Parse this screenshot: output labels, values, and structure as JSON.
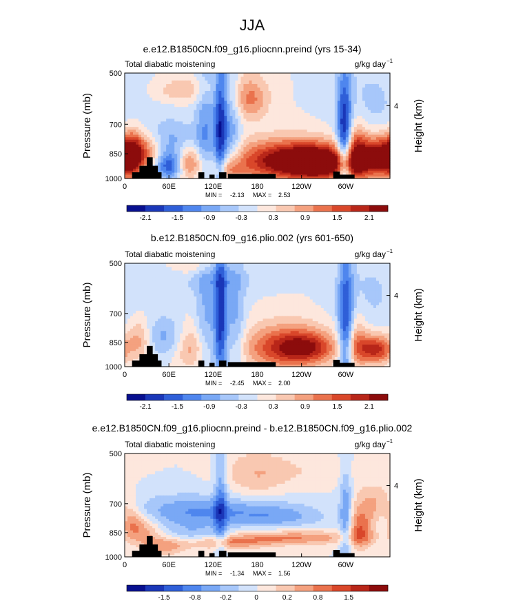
{
  "page_title": "JJA",
  "chart_data": [
    {
      "type": "heatmap",
      "title": "e.e12.B1850CN.f09_g16.pliocnn.preind (yrs 15-34)",
      "variable": "Total diabatic moistening",
      "units_label": "g/kg day",
      "units_exp": "−1",
      "ylabel": "Pressure (mb)",
      "ylabel_right": "Height (km)",
      "right_ticks": [
        "4"
      ],
      "x_ticks": [
        "0",
        "60E",
        "120E",
        "180",
        "120W",
        "60W"
      ],
      "y_ticks": [
        "500",
        "700",
        "850",
        "1000"
      ],
      "ylim": [
        1000,
        500
      ],
      "stats": {
        "min_label": "MIN =",
        "min": "-2.13",
        "max_label": "MAX =",
        "max": "2.53"
      },
      "colorbar_labels": [
        "-2.1",
        "-1.5",
        "-0.9",
        "-0.3",
        "0.3",
        "0.9",
        "1.5",
        "2.1"
      ],
      "colorbar_colors": [
        "#08108f",
        "#1a37b8",
        "#2f5fd8",
        "#4f86ee",
        "#79a8f5",
        "#a7c7fa",
        "#d2e2fb",
        "#fde7dd",
        "#f9c8b1",
        "#f4a17f",
        "#ea724d",
        "#d9472a",
        "#b82619",
        "#8c0c0c"
      ],
      "blobs": [
        {
          "lon": 30,
          "p": 830,
          "rx": 22,
          "ry": 70,
          "v": 1.5
        },
        {
          "lon": 10,
          "p": 870,
          "rx": 10,
          "ry": 90,
          "v": 1.4
        },
        {
          "lon": 55,
          "p": 800,
          "rx": 28,
          "ry": 80,
          "v": -1.1
        },
        {
          "lon": 62,
          "p": 920,
          "rx": 14,
          "ry": 60,
          "v": -1.6
        },
        {
          "lon": 85,
          "p": 900,
          "rx": 15,
          "ry": 70,
          "v": 1.3
        },
        {
          "lon": 110,
          "p": 780,
          "rx": 10,
          "ry": 220,
          "v": -0.9
        },
        {
          "lon": 130,
          "p": 760,
          "rx": 6,
          "ry": 250,
          "v": -1.6
        },
        {
          "lon": 145,
          "p": 750,
          "rx": 9,
          "ry": 200,
          "v": -0.8
        },
        {
          "lon": 140,
          "p": 950,
          "rx": 14,
          "ry": 50,
          "v": 1.0
        },
        {
          "lon": 170,
          "p": 590,
          "rx": 18,
          "ry": 60,
          "v": 1.0
        },
        {
          "lon": 80,
          "p": 560,
          "rx": 25,
          "ry": 30,
          "v": 0.6
        },
        {
          "lon": 230,
          "p": 890,
          "rx": 55,
          "ry": 80,
          "v": 2.3
        },
        {
          "lon": 265,
          "p": 910,
          "rx": 30,
          "ry": 60,
          "v": 1.6
        },
        {
          "lon": 298,
          "p": 790,
          "rx": 7,
          "ry": 220,
          "v": -1.8
        },
        {
          "lon": 315,
          "p": 850,
          "rx": 10,
          "ry": 120,
          "v": 1.2
        },
        {
          "lon": 345,
          "p": 870,
          "rx": 20,
          "ry": 80,
          "v": 2.0
        },
        {
          "lon": 330,
          "p": 620,
          "rx": 35,
          "ry": 120,
          "v": -0.4
        }
      ]
    },
    {
      "type": "heatmap",
      "title": "b.e12.B1850CN.f09_g16.plio.002 (yrs 601-650)",
      "variable": "Total diabatic moistening",
      "units_label": "g/kg day",
      "units_exp": "−1",
      "ylabel": "Pressure (mb)",
      "ylabel_right": "Height (km)",
      "right_ticks": [
        "4"
      ],
      "x_ticks": [
        "0",
        "60E",
        "120E",
        "180",
        "120W",
        "60W"
      ],
      "y_ticks": [
        "500",
        "700",
        "850",
        "1000"
      ],
      "ylim": [
        1000,
        500
      ],
      "stats": {
        "min_label": "MIN =",
        "min": "-2.45",
        "max_label": "MAX =",
        "max": "2.00"
      },
      "colorbar_labels": [
        "-2.1",
        "-1.5",
        "-0.9",
        "-0.3",
        "0.3",
        "0.9",
        "1.5",
        "2.1"
      ],
      "colorbar_colors": [
        "#08108f",
        "#1a37b8",
        "#2f5fd8",
        "#4f86ee",
        "#79a8f5",
        "#a7c7fa",
        "#d2e2fb",
        "#fde7dd",
        "#f9c8b1",
        "#f4a17f",
        "#ea724d",
        "#d9472a",
        "#b82619",
        "#8c0c0c"
      ],
      "blobs": [
        {
          "lon": 20,
          "p": 830,
          "rx": 12,
          "ry": 80,
          "v": 0.9
        },
        {
          "lon": 55,
          "p": 820,
          "rx": 26,
          "ry": 80,
          "v": -0.7
        },
        {
          "lon": 90,
          "p": 870,
          "rx": 16,
          "ry": 90,
          "v": 0.9
        },
        {
          "lon": 110,
          "p": 760,
          "rx": 10,
          "ry": 230,
          "v": -0.7
        },
        {
          "lon": 130,
          "p": 740,
          "rx": 6,
          "ry": 250,
          "v": -1.6
        },
        {
          "lon": 120,
          "p": 560,
          "rx": 45,
          "ry": 40,
          "v": -0.4
        },
        {
          "lon": 150,
          "p": 760,
          "rx": 10,
          "ry": 200,
          "v": -0.7
        },
        {
          "lon": 95,
          "p": 500,
          "rx": 20,
          "ry": 30,
          "v": 0.5
        },
        {
          "lon": 220,
          "p": 880,
          "rx": 40,
          "ry": 90,
          "v": 1.6
        },
        {
          "lon": 250,
          "p": 880,
          "rx": 25,
          "ry": 60,
          "v": 0.9
        },
        {
          "lon": 300,
          "p": 770,
          "rx": 7,
          "ry": 230,
          "v": -1.5
        },
        {
          "lon": 315,
          "p": 850,
          "rx": 10,
          "ry": 110,
          "v": 0.8
        },
        {
          "lon": 340,
          "p": 890,
          "rx": 16,
          "ry": 60,
          "v": 1.7
        },
        {
          "lon": 330,
          "p": 620,
          "rx": 35,
          "ry": 130,
          "v": -0.35
        }
      ]
    },
    {
      "type": "heatmap",
      "title": "e.e12.B1850CN.f09_g16.pliocnn.preind - b.e12.B1850CN.f09_g16.plio.002",
      "variable": "Total diabatic moistening",
      "units_label": "g/kg day",
      "units_exp": "−1",
      "ylabel": "Pressure (mb)",
      "ylabel_right": "Height (km)",
      "right_ticks": [
        "4"
      ],
      "x_ticks": [
        "0",
        "60E",
        "120E",
        "180",
        "120W",
        "60W"
      ],
      "y_ticks": [
        "500",
        "700",
        "850",
        "1000"
      ],
      "ylim": [
        1000,
        500
      ],
      "stats": {
        "min_label": "MIN =",
        "min": "-1.34",
        "max_label": "MAX =",
        "max": "1.56"
      },
      "colorbar_labels": [
        "-1.5",
        "-0.8",
        "-0.2",
        "0",
        "0.2",
        "0.8",
        "1.5"
      ],
      "colorbar_colors": [
        "#08108f",
        "#1a37b8",
        "#2f5fd8",
        "#4f86ee",
        "#79a8f5",
        "#a7c7fa",
        "#d2e2fb",
        "#fde7dd",
        "#f9c8b1",
        "#f4a17f",
        "#ea724d",
        "#d9472a",
        "#b82619",
        "#8c0c0c"
      ],
      "blobs": [
        {
          "lon": 10,
          "p": 800,
          "rx": 10,
          "ry": 60,
          "v": 0.9
        },
        {
          "lon": 30,
          "p": 840,
          "rx": 14,
          "ry": 60,
          "v": 0.7
        },
        {
          "lon": 75,
          "p": 740,
          "rx": 55,
          "ry": 60,
          "v": -0.7
        },
        {
          "lon": 170,
          "p": 740,
          "rx": 60,
          "ry": 50,
          "v": -0.6
        },
        {
          "lon": 215,
          "p": 770,
          "rx": 40,
          "ry": 40,
          "v": -0.4
        },
        {
          "lon": 178,
          "p": 580,
          "rx": 30,
          "ry": 70,
          "v": 0.5
        },
        {
          "lon": 250,
          "p": 560,
          "rx": 60,
          "ry": 40,
          "v": 0.25
        },
        {
          "lon": 230,
          "p": 880,
          "rx": 60,
          "ry": 30,
          "v": 0.9
        },
        {
          "lon": 140,
          "p": 910,
          "rx": 40,
          "ry": 30,
          "v": 0.8
        },
        {
          "lon": 95,
          "p": 860,
          "rx": 30,
          "ry": 40,
          "v": -0.5
        },
        {
          "lon": 130,
          "p": 720,
          "rx": 6,
          "ry": 200,
          "v": -0.9
        },
        {
          "lon": 300,
          "p": 790,
          "rx": 6,
          "ry": 200,
          "v": -0.9
        },
        {
          "lon": 320,
          "p": 830,
          "rx": 12,
          "ry": 80,
          "v": 1.2
        },
        {
          "lon": 340,
          "p": 700,
          "rx": 18,
          "ry": 60,
          "v": 0.7
        },
        {
          "lon": 55,
          "p": 930,
          "rx": 20,
          "ry": 40,
          "v": 0.8
        }
      ]
    }
  ]
}
